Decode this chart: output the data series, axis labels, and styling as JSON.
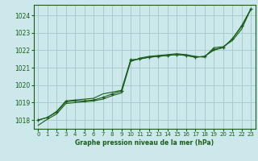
{
  "title": "Graphe pression niveau de la mer (hPa)",
  "bg_color": "#cce8ea",
  "grid_color": "#aaccce",
  "line_color": "#1a5c1a",
  "marker_color": "#1a5c1a",
  "xlim": [
    -0.5,
    23.5
  ],
  "ylim": [
    1017.5,
    1024.6
  ],
  "yticks": [
    1018,
    1019,
    1020,
    1021,
    1022,
    1023,
    1024
  ],
  "xticks": [
    0,
    1,
    2,
    3,
    4,
    5,
    6,
    7,
    8,
    9,
    10,
    11,
    12,
    13,
    14,
    15,
    16,
    17,
    18,
    19,
    20,
    21,
    22,
    23
  ],
  "series": [
    {
      "x": [
        0,
        1,
        2,
        3,
        4,
        5,
        6,
        7,
        8,
        9,
        10,
        11,
        12,
        13,
        14,
        15,
        16,
        17,
        18,
        19,
        20,
        21,
        22,
        23
      ],
      "y": [
        1018.0,
        1018.15,
        1018.45,
        1019.05,
        1019.1,
        1019.1,
        1019.15,
        1019.3,
        1019.5,
        1019.65,
        1021.45,
        1021.5,
        1021.6,
        1021.65,
        1021.7,
        1021.75,
        1021.7,
        1021.6,
        1021.65,
        1022.05,
        1022.15,
        1022.65,
        1023.4,
        1024.35
      ],
      "with_markers": true
    },
    {
      "x": [
        0,
        1,
        2,
        3,
        4,
        5,
        6,
        7,
        8,
        9,
        10,
        11,
        12,
        13,
        14,
        15,
        16,
        17,
        18,
        19,
        20,
        21,
        22,
        23
      ],
      "y": [
        1018.0,
        1018.15,
        1018.5,
        1019.1,
        1019.15,
        1019.2,
        1019.25,
        1019.5,
        1019.6,
        1019.7,
        1021.4,
        1021.5,
        1021.6,
        1021.65,
        1021.7,
        1021.75,
        1021.7,
        1021.6,
        1021.65,
        1022.0,
        1022.15,
        1022.65,
        1023.35,
        1024.35
      ],
      "with_markers": false
    },
    {
      "x": [
        0,
        1,
        2,
        3,
        4,
        5,
        6,
        7,
        8,
        9,
        10,
        11,
        12,
        13,
        14,
        15,
        16,
        17,
        18,
        19,
        20,
        21,
        22,
        23
      ],
      "y": [
        1017.7,
        1018.05,
        1018.35,
        1018.95,
        1019.0,
        1019.05,
        1019.1,
        1019.2,
        1019.4,
        1019.55,
        1021.35,
        1021.55,
        1021.65,
        1021.7,
        1021.75,
        1021.8,
        1021.75,
        1021.65,
        1021.6,
        1022.15,
        1022.2,
        1022.55,
        1023.2,
        1024.35
      ],
      "with_markers": false
    }
  ]
}
